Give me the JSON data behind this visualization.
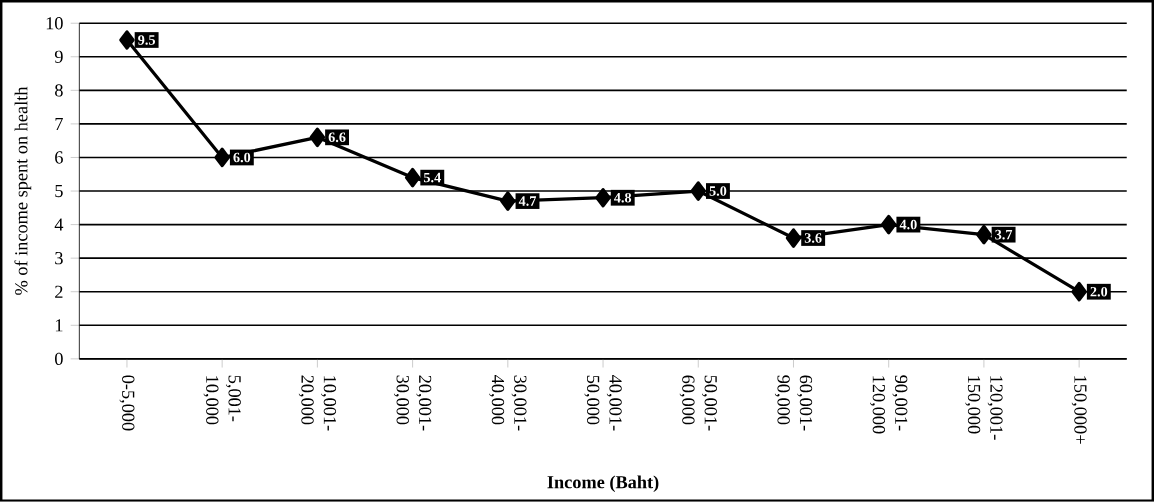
{
  "chart_data": {
    "type": "line",
    "xlabel": "Income (Baht)",
    "ylabel": "% of income spent on health",
    "categories": [
      "0-5,000",
      "5,001-10,000",
      "10,001-20,000",
      "20,001-30,000",
      "30,001-40,000",
      "40,001-50,000",
      "50,001-60,000",
      "60,001-90,000",
      "90,001-120,000",
      "120,001-150,000",
      "150,000+"
    ],
    "values": [
      9.5,
      6.0,
      6.6,
      5.4,
      4.7,
      4.8,
      5.0,
      3.6,
      4.0,
      3.7,
      2.0
    ],
    "value_labels": [
      "9.5",
      "6.0",
      "6.6",
      "5.4",
      "4.7",
      "4.8",
      "5.0",
      "3.6",
      "4.0",
      "3.7",
      "2.0"
    ],
    "color": "#000000",
    "ylim": [
      0,
      10
    ],
    "yticks": [
      0,
      1,
      2,
      3,
      4,
      5,
      6,
      7,
      8,
      9,
      10
    ],
    "grid": "y",
    "marker": "diamond",
    "line_style": "solid"
  }
}
